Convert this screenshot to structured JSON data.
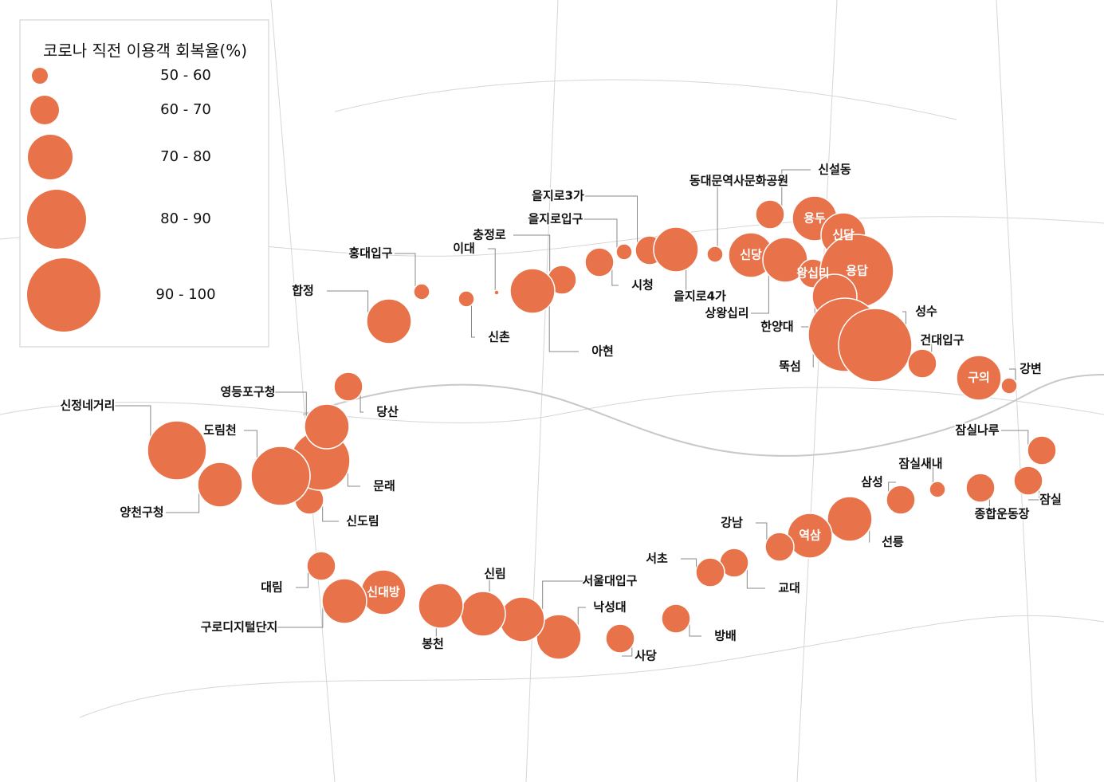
{
  "legend": {
    "title": "코로나 직전 이용객 회복율(%)",
    "classes": [
      {
        "label": "50 - 60",
        "min": 50,
        "max": 60
      },
      {
        "label": "60 - 70",
        "min": 60,
        "max": 70
      },
      {
        "label": "70 - 80",
        "min": 70,
        "max": 80
      },
      {
        "label": "80 - 90",
        "min": 80,
        "max": 90
      },
      {
        "label": "90 - 100",
        "min": 90,
        "max": 100
      }
    ]
  },
  "stations": [
    {
      "name": "합정",
      "value": 75
    },
    {
      "name": "홍대입구",
      "value": 55
    },
    {
      "name": "신촌",
      "value": 55
    },
    {
      "name": "이대",
      "value": 45
    },
    {
      "name": "충정로",
      "value": 65
    },
    {
      "name": "아현",
      "value": 75
    },
    {
      "name": "시청",
      "value": 65
    },
    {
      "name": "을지로입구",
      "value": 55
    },
    {
      "name": "을지로3가",
      "value": 65
    },
    {
      "name": "을지로4가",
      "value": 75
    },
    {
      "name": "동대문역사문화공원",
      "value": 55
    },
    {
      "name": "신당",
      "value": 75
    },
    {
      "name": "상왕십리",
      "value": 75
    },
    {
      "name": "신설동",
      "value": 65
    },
    {
      "name": "용두",
      "value": 75
    },
    {
      "name": "신답",
      "value": 75
    },
    {
      "name": "왕십리",
      "value": 65
    },
    {
      "name": "용답",
      "value": 95
    },
    {
      "name": "한양대",
      "value": 75
    },
    {
      "name": "뚝섬",
      "value": 95
    },
    {
      "name": "성수",
      "value": 95
    },
    {
      "name": "건대입구",
      "value": 65
    },
    {
      "name": "구의",
      "value": 75
    },
    {
      "name": "강변",
      "value": 55
    },
    {
      "name": "잠실나루",
      "value": 65
    },
    {
      "name": "잠실",
      "value": 65
    },
    {
      "name": "잠실새내",
      "value": 55
    },
    {
      "name": "종합운동장",
      "value": 65
    },
    {
      "name": "삼성",
      "value": 65
    },
    {
      "name": "선릉",
      "value": 75
    },
    {
      "name": "역삼",
      "value": 75
    },
    {
      "name": "강남",
      "value": 65
    },
    {
      "name": "교대",
      "value": 65
    },
    {
      "name": "서초",
      "value": 65
    },
    {
      "name": "방배",
      "value": 65
    },
    {
      "name": "사당",
      "value": 65
    },
    {
      "name": "낙성대",
      "value": 75
    },
    {
      "name": "서울대입구",
      "value": 75
    },
    {
      "name": "신림",
      "value": 75
    },
    {
      "name": "봉천",
      "value": 75
    },
    {
      "name": "신대방",
      "value": 75
    },
    {
      "name": "구로디지털단지",
      "value": 75
    },
    {
      "name": "대림",
      "value": 65
    },
    {
      "name": "신도림",
      "value": 65
    },
    {
      "name": "문래",
      "value": 85
    },
    {
      "name": "도림천",
      "value": 85
    },
    {
      "name": "양천구청",
      "value": 75
    },
    {
      "name": "신정네거리",
      "value": 85
    },
    {
      "name": "영등포구청",
      "value": 75
    },
    {
      "name": "당산",
      "value": 65
    }
  ]
}
